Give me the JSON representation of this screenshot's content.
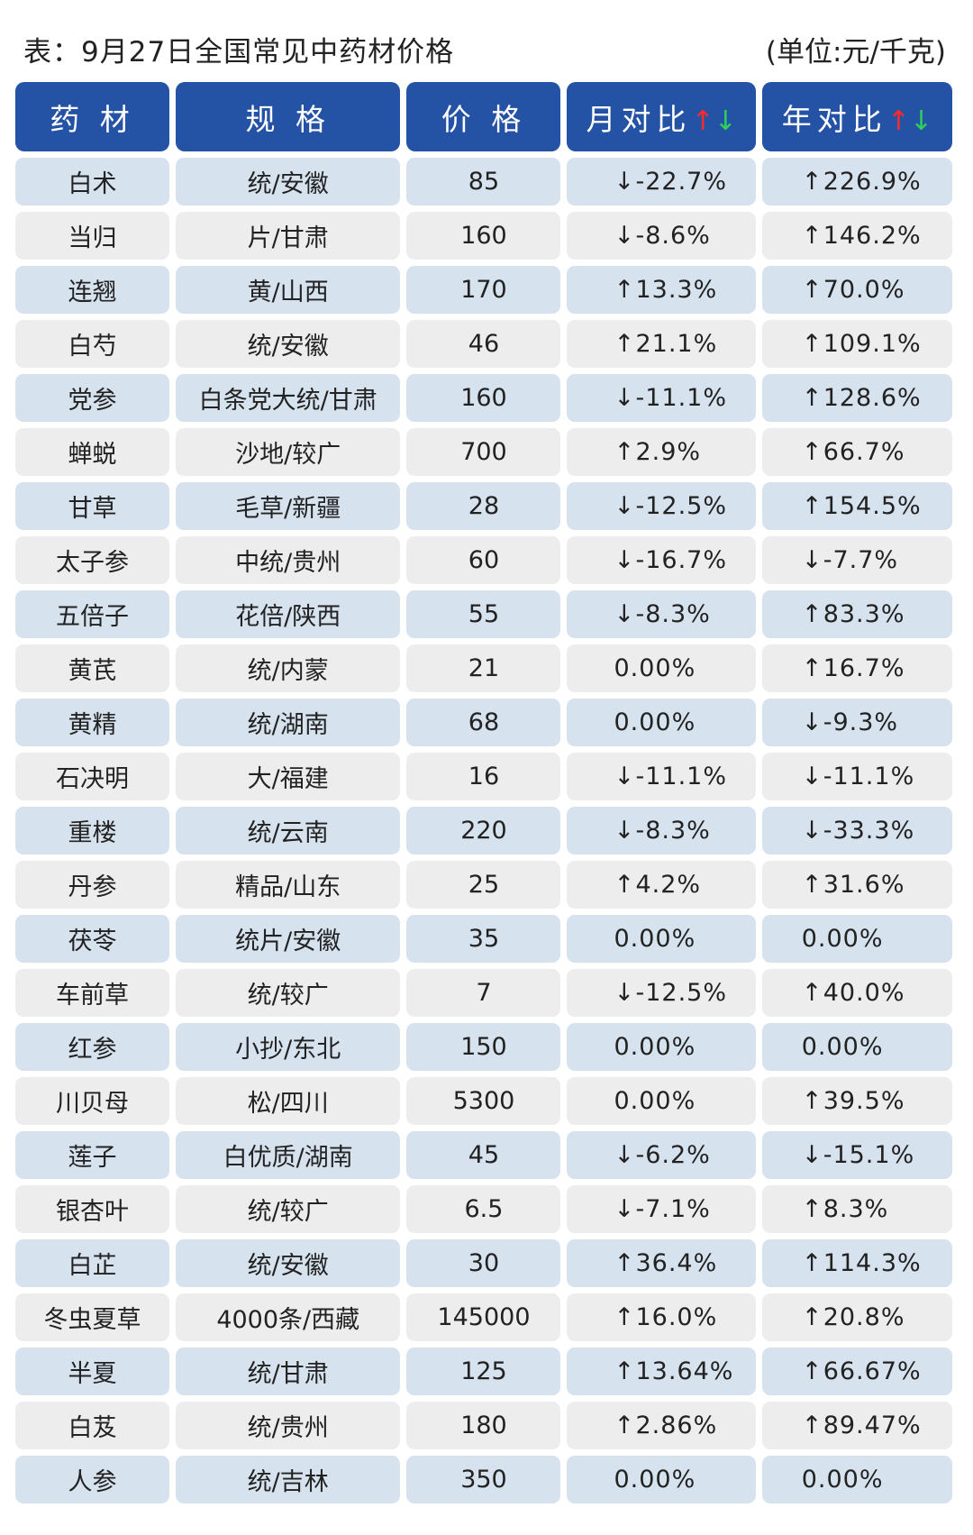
{
  "title": "表：9月27日全国常见中药材价格",
  "unit": "(单位:元/千克)",
  "headers": [
    "药 材",
    "规 格",
    "价 格",
    "月对比",
    "年对比"
  ],
  "header_arrows": {
    "up": "↑",
    "down": "↓"
  },
  "colors": {
    "header_bg": "#2452a4",
    "band_a": "#d6e2ee",
    "band_b": "#ededed",
    "up": "#e32418",
    "down": "#27a845"
  },
  "rows": [
    {
      "name": "白术",
      "spec": "统/安徽",
      "price": "85",
      "mom": "-22.7%",
      "mom_dir": "down",
      "yoy": "226.9%",
      "yoy_dir": "up"
    },
    {
      "name": "当归",
      "spec": "片/甘肃",
      "price": "160",
      "mom": "-8.6%",
      "mom_dir": "down",
      "yoy": "146.2%",
      "yoy_dir": "up"
    },
    {
      "name": "连翘",
      "spec": "黄/山西",
      "price": "170",
      "mom": "13.3%",
      "mom_dir": "up",
      "yoy": "70.0%",
      "yoy_dir": "up"
    },
    {
      "name": "白芍",
      "spec": "统/安徽",
      "price": "46",
      "mom": "21.1%",
      "mom_dir": "up",
      "yoy": "109.1%",
      "yoy_dir": "up"
    },
    {
      "name": "党参",
      "spec": "白条党大统/甘肃",
      "price": "160",
      "mom": "-11.1%",
      "mom_dir": "down",
      "yoy": "128.6%",
      "yoy_dir": "up"
    },
    {
      "name": "蝉蜕",
      "spec": "沙地/较广",
      "price": "700",
      "mom": "2.9%",
      "mom_dir": "up",
      "yoy": "66.7%",
      "yoy_dir": "up"
    },
    {
      "name": "甘草",
      "spec": "毛草/新疆",
      "price": "28",
      "mom": "-12.5%",
      "mom_dir": "down",
      "yoy": "154.5%",
      "yoy_dir": "up"
    },
    {
      "name": "太子参",
      "spec": "中统/贵州",
      "price": "60",
      "mom": "-16.7%",
      "mom_dir": "down",
      "yoy": "-7.7%",
      "yoy_dir": "down"
    },
    {
      "name": "五倍子",
      "spec": "花倍/陕西",
      "price": "55",
      "mom": "-8.3%",
      "mom_dir": "down",
      "yoy": "83.3%",
      "yoy_dir": "up"
    },
    {
      "name": "黄芪",
      "spec": "统/内蒙",
      "price": "21",
      "mom": "0.00%",
      "mom_dir": "flat",
      "yoy": "16.7%",
      "yoy_dir": "up"
    },
    {
      "name": "黄精",
      "spec": "统/湖南",
      "price": "68",
      "mom": "0.00%",
      "mom_dir": "flat",
      "yoy": "-9.3%",
      "yoy_dir": "down"
    },
    {
      "name": "石决明",
      "spec": "大/福建",
      "price": "16",
      "mom": "-11.1%",
      "mom_dir": "down",
      "yoy": "-11.1%",
      "yoy_dir": "down"
    },
    {
      "name": "重楼",
      "spec": "统/云南",
      "price": "220",
      "mom": "-8.3%",
      "mom_dir": "down",
      "yoy": "-33.3%",
      "yoy_dir": "down"
    },
    {
      "name": "丹参",
      "spec": "精品/山东",
      "price": "25",
      "mom": "4.2%",
      "mom_dir": "up",
      "yoy": "31.6%",
      "yoy_dir": "up"
    },
    {
      "name": "茯苓",
      "spec": "统片/安徽",
      "price": "35",
      "mom": "0.00%",
      "mom_dir": "flat",
      "yoy": "0.00%",
      "yoy_dir": "flat"
    },
    {
      "name": "车前草",
      "spec": "统/较广",
      "price": "7",
      "mom": "-12.5%",
      "mom_dir": "down",
      "yoy": "40.0%",
      "yoy_dir": "up"
    },
    {
      "name": "红参",
      "spec": "小抄/东北",
      "price": "150",
      "mom": "0.00%",
      "mom_dir": "flat",
      "yoy": "0.00%",
      "yoy_dir": "flat"
    },
    {
      "name": "川贝母",
      "spec": "松/四川",
      "price": "5300",
      "mom": "0.00%",
      "mom_dir": "flat",
      "yoy": "39.5%",
      "yoy_dir": "up"
    },
    {
      "name": "莲子",
      "spec": "白优质/湖南",
      "price": "45",
      "mom": "-6.2%",
      "mom_dir": "down",
      "yoy": "-15.1%",
      "yoy_dir": "down"
    },
    {
      "name": "银杏叶",
      "spec": "统/较广",
      "price": "6.5",
      "mom": "-7.1%",
      "mom_dir": "down",
      "yoy": "8.3%",
      "yoy_dir": "up"
    },
    {
      "name": "白芷",
      "spec": "统/安徽",
      "price": "30",
      "mom": "36.4%",
      "mom_dir": "up",
      "yoy": "114.3%",
      "yoy_dir": "up"
    },
    {
      "name": "冬虫夏草",
      "spec": "4000条/西藏",
      "price": "145000",
      "mom": "16.0%",
      "mom_dir": "up",
      "yoy": "20.8%",
      "yoy_dir": "up"
    },
    {
      "name": "半夏",
      "spec": "统/甘肃",
      "price": "125",
      "mom": "13.64%",
      "mom_dir": "up",
      "yoy": "66.67%",
      "yoy_dir": "up"
    },
    {
      "name": "白芨",
      "spec": "统/贵州",
      "price": "180",
      "mom": "2.86%",
      "mom_dir": "up",
      "yoy": "89.47%",
      "yoy_dir": "up"
    },
    {
      "name": "人参",
      "spec": "统/吉林",
      "price": "350",
      "mom": "0.00%",
      "mom_dir": "flat",
      "yoy": "0.00%",
      "yoy_dir": "flat"
    }
  ]
}
